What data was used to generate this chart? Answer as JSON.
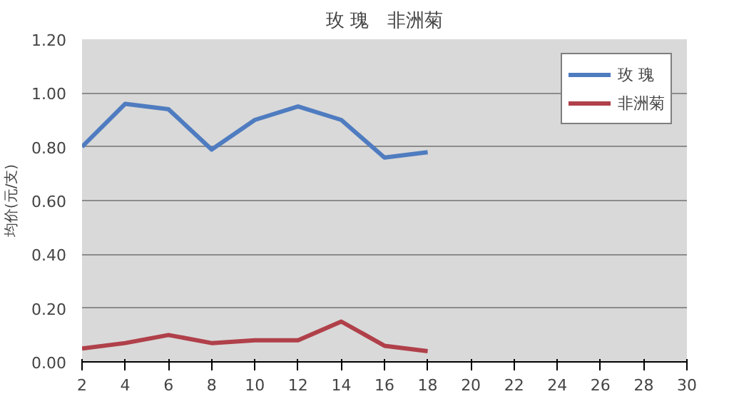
{
  "chart_data": {
    "type": "line",
    "title": "玫 瑰　非洲菊",
    "ylabel": "均价(元/支)",
    "x": [
      2,
      4,
      6,
      8,
      10,
      12,
      14,
      16,
      18
    ],
    "series": [
      {
        "name": "玫 瑰",
        "color": "#4f7cc0",
        "values": [
          0.8,
          0.96,
          0.94,
          0.79,
          0.9,
          0.95,
          0.9,
          0.76,
          0.78
        ]
      },
      {
        "name": "非洲菊",
        "color": "#b0404a",
        "values": [
          0.05,
          0.07,
          0.1,
          0.07,
          0.08,
          0.08,
          0.15,
          0.06,
          0.04
        ]
      }
    ],
    "xlim": [
      2,
      30
    ],
    "xticks": [
      2,
      4,
      6,
      8,
      10,
      12,
      14,
      16,
      18,
      20,
      22,
      24,
      26,
      28,
      30
    ],
    "ylim": [
      0,
      1.2
    ],
    "yticks": [
      {
        "value": 0,
        "label": "0.00"
      },
      {
        "value": 0.2,
        "label": "0.20"
      },
      {
        "value": 0.4,
        "label": "0.40"
      },
      {
        "value": 0.6,
        "label": "0.60"
      },
      {
        "value": 0.8,
        "label": "0.80"
      },
      {
        "value": 1.0,
        "label": "1.00"
      },
      {
        "value": 1.2,
        "label": "1.20"
      }
    ],
    "grid": "y",
    "legend": "top right"
  }
}
